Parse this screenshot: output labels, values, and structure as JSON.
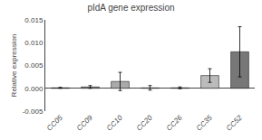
{
  "chart_data": {
    "type": "bar",
    "title": "pIdA gene expression",
    "ylabel": "Relative expression",
    "categories": [
      "CC05",
      "CC09",
      "CC10",
      "CC20",
      "CC26",
      "CC35",
      "CC52"
    ],
    "values": [
      0.0001,
      0.0003,
      0.0015,
      0.0001,
      0.0001,
      0.0028,
      0.008
    ],
    "errors": [
      0.0001,
      0.0003,
      0.002,
      0.0005,
      0.0002,
      0.0015,
      0.0055
    ],
    "colors": [
      "#555555",
      "#888888",
      "#aaaaaa",
      "#bbbbbb",
      "#999999",
      "#bbbbbb",
      "#777777"
    ],
    "ylim": [
      -0.005,
      0.015
    ],
    "yticks": [
      -0.005,
      {
        "value": 0,
        "label": "0.000"
      },
      0.005,
      {
        "value": 0.01,
        "label": "0.010"
      },
      0.015
    ],
    "grid": false
  }
}
